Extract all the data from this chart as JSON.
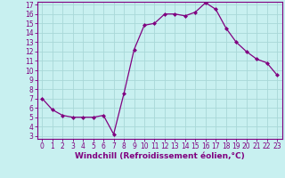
{
  "x": [
    0,
    1,
    2,
    3,
    4,
    5,
    6,
    7,
    8,
    9,
    10,
    11,
    12,
    13,
    14,
    15,
    16,
    17,
    18,
    19,
    20,
    21,
    22,
    23
  ],
  "y": [
    7.0,
    5.8,
    5.2,
    5.0,
    5.0,
    5.0,
    5.2,
    3.2,
    7.5,
    12.2,
    14.8,
    15.0,
    16.0,
    16.0,
    15.8,
    16.2,
    17.2,
    16.5,
    14.5,
    13.0,
    12.0,
    11.2,
    10.8,
    9.5
  ],
  "line_color": "#800080",
  "marker": "D",
  "marker_size": 2.0,
  "bg_color": "#c8f0f0",
  "grid_color": "#a8d8d8",
  "xlabel": "Windchill (Refroidissement éolien,°C)",
  "ylim_min": 3,
  "ylim_max": 17,
  "xlim_min": 0,
  "xlim_max": 23,
  "yticks": [
    3,
    4,
    5,
    6,
    7,
    8,
    9,
    10,
    11,
    12,
    13,
    14,
    15,
    16,
    17
  ],
  "xticks": [
    0,
    1,
    2,
    3,
    4,
    5,
    6,
    7,
    8,
    9,
    10,
    11,
    12,
    13,
    14,
    15,
    16,
    17,
    18,
    19,
    20,
    21,
    22,
    23
  ],
  "tick_fontsize": 5.5,
  "xlabel_fontsize": 6.5,
  "axis_label_color": "#800080",
  "spine_color": "#800080",
  "linewidth": 0.9
}
